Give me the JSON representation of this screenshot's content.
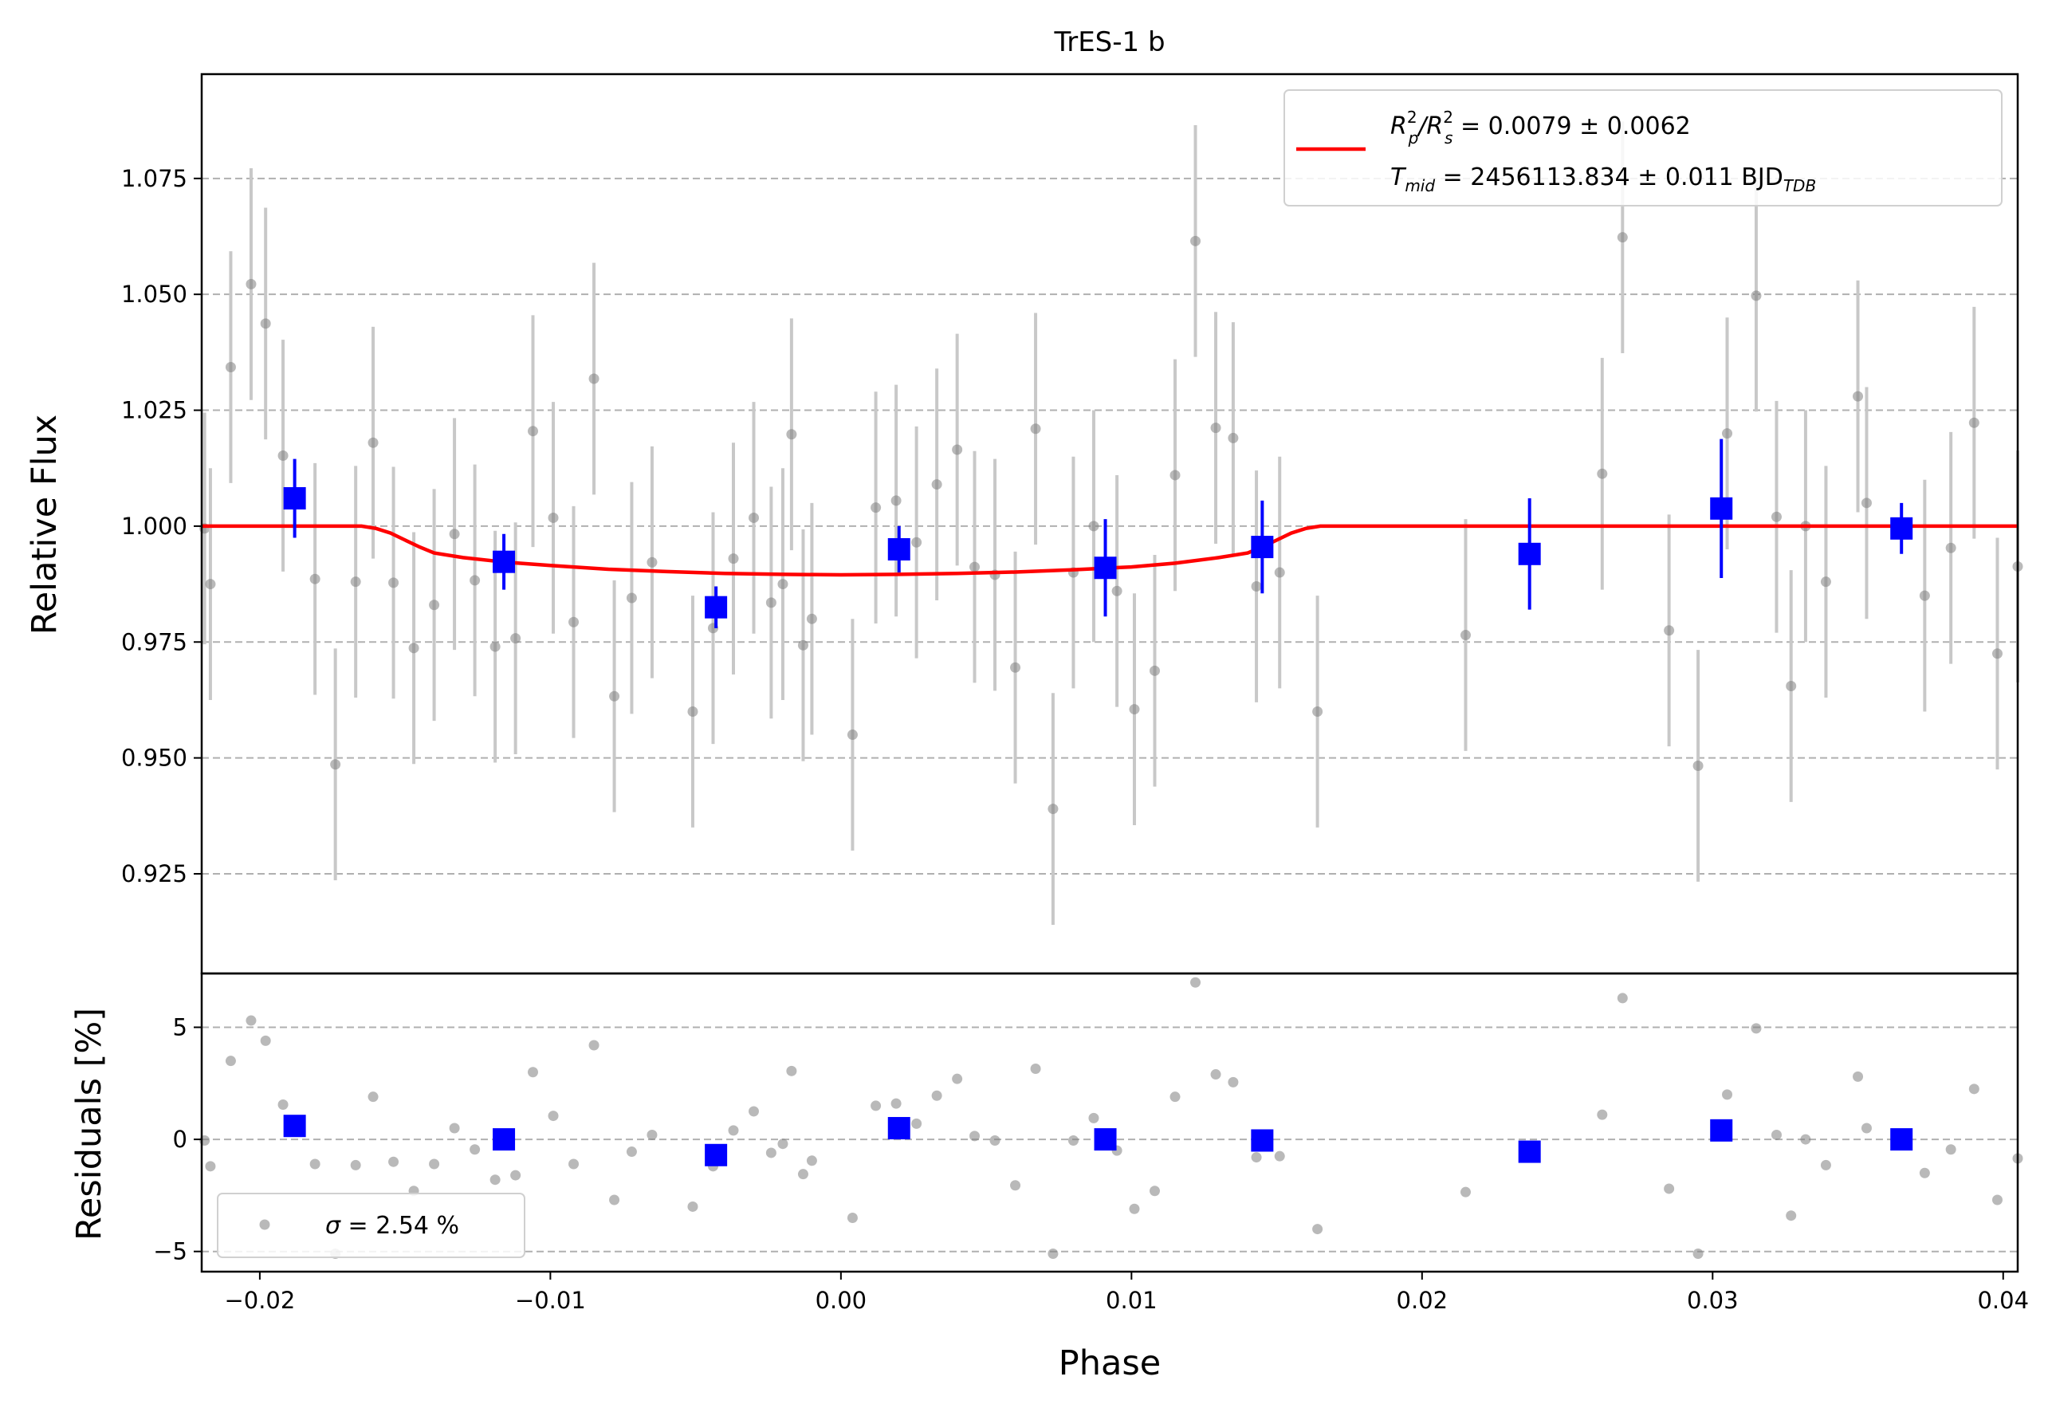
{
  "chart_data": {
    "type": "scatter",
    "title": "TrES-1 b",
    "xlabel": "Phase",
    "colors": {
      "raw": "#808080",
      "raw_err": "#c8c8c8",
      "binned": "#0000ff",
      "model": "#ff0000",
      "grid": "#b0b0b0"
    },
    "top_panel": {
      "ylabel": "Relative Flux",
      "xlim": [
        -0.022,
        0.0405
      ],
      "ylim": [
        0.9035,
        1.0975
      ],
      "yticks": [
        "0.925",
        "0.950",
        "0.975",
        "1.000",
        "1.025",
        "1.050",
        "1.075"
      ],
      "legend": {
        "line1_main": "R",
        "line1_sub1": "p",
        "line1_sup1": "2",
        "line1_sep": "/R",
        "line1_sub2": "s",
        "line1_sup2": "2",
        "line1_value": " = 0.0079 ± 0.0062",
        "line2_main": "T",
        "line2_sub": "mid",
        "line2_value": " = 2456113.834 ± 0.011 BJD",
        "line2_tdb": "TDB"
      },
      "raw_points": [
        [
          -0.0219,
          0.9995,
          0.025
        ],
        [
          -0.0217,
          0.9875,
          0.025
        ],
        [
          -0.021,
          1.0343,
          0.025
        ],
        [
          -0.0203,
          1.0522,
          0.025
        ],
        [
          -0.0198,
          1.0437,
          0.025
        ],
        [
          -0.0192,
          1.0152,
          0.025
        ],
        [
          -0.0181,
          0.9886,
          0.025
        ],
        [
          -0.0174,
          0.9486,
          0.025
        ],
        [
          -0.0167,
          0.988,
          0.025
        ],
        [
          -0.0161,
          1.018,
          0.025
        ],
        [
          -0.0154,
          0.9878,
          0.025
        ],
        [
          -0.0147,
          0.9737,
          0.025
        ],
        [
          -0.014,
          0.983,
          0.025
        ],
        [
          -0.0133,
          0.9983,
          0.025
        ],
        [
          -0.0126,
          0.9883,
          0.025
        ],
        [
          -0.0119,
          0.974,
          0.025
        ],
        [
          -0.0112,
          0.9758,
          0.025
        ],
        [
          -0.0106,
          1.0205,
          0.025
        ],
        [
          -0.0099,
          1.0018,
          0.025
        ],
        [
          -0.0092,
          0.9793,
          0.025
        ],
        [
          -0.0085,
          1.0318,
          0.025
        ],
        [
          -0.0078,
          0.9633,
          0.025
        ],
        [
          -0.0072,
          0.9845,
          0.025
        ],
        [
          -0.0065,
          0.9922,
          0.025
        ],
        [
          -0.0051,
          0.96,
          0.025
        ],
        [
          -0.0044,
          0.978,
          0.025
        ],
        [
          -0.0037,
          0.993,
          0.025
        ],
        [
          -0.003,
          1.0018,
          0.025
        ],
        [
          -0.0024,
          0.9835,
          0.025
        ],
        [
          -0.002,
          0.9875,
          0.025
        ],
        [
          -0.0017,
          1.0198,
          0.025
        ],
        [
          -0.0013,
          0.9743,
          0.025
        ],
        [
          -0.001,
          0.98,
          0.025
        ],
        [
          0.0004,
          0.955,
          0.025
        ],
        [
          0.0012,
          1.004,
          0.025
        ],
        [
          0.0019,
          1.0055,
          0.025
        ],
        [
          0.0026,
          0.9965,
          0.025
        ],
        [
          0.0033,
          1.009,
          0.025
        ],
        [
          0.004,
          1.0165,
          0.025
        ],
        [
          0.0046,
          0.9912,
          0.025
        ],
        [
          0.0053,
          0.9895,
          0.025
        ],
        [
          0.006,
          0.9695,
          0.025
        ],
        [
          0.0067,
          1.021,
          0.025
        ],
        [
          0.0073,
          0.939,
          0.025
        ],
        [
          0.008,
          0.99,
          0.025
        ],
        [
          0.0087,
          1.0,
          0.025
        ],
        [
          0.0095,
          0.986,
          0.025
        ],
        [
          0.0101,
          0.9605,
          0.025
        ],
        [
          0.0108,
          0.9688,
          0.025
        ],
        [
          0.0115,
          1.011,
          0.025
        ],
        [
          0.0122,
          1.0615,
          0.025
        ],
        [
          0.0129,
          1.0212,
          0.025
        ],
        [
          0.0135,
          1.019,
          0.025
        ],
        [
          0.0143,
          0.987,
          0.025
        ],
        [
          0.0151,
          0.99,
          0.025
        ],
        [
          0.0164,
          0.96,
          0.025
        ],
        [
          0.0215,
          0.9765,
          0.025
        ],
        [
          0.0262,
          1.0113,
          0.025
        ],
        [
          0.0269,
          1.0623,
          0.025
        ],
        [
          0.0285,
          0.9775,
          0.025
        ],
        [
          0.0295,
          0.9483,
          0.025
        ],
        [
          0.0305,
          1.02,
          0.025
        ],
        [
          0.0315,
          1.0497,
          0.025
        ],
        [
          0.0322,
          1.002,
          0.025
        ],
        [
          0.0327,
          0.9655,
          0.025
        ],
        [
          0.0332,
          1.0,
          0.025
        ],
        [
          0.0339,
          0.988,
          0.025
        ],
        [
          0.035,
          1.028,
          0.025
        ],
        [
          0.0353,
          1.005,
          0.025
        ],
        [
          0.0373,
          0.985,
          0.025
        ],
        [
          0.0382,
          0.9953,
          0.025
        ],
        [
          0.039,
          1.0223,
          0.025
        ],
        [
          0.0398,
          0.9725,
          0.025
        ],
        [
          0.0405,
          0.9913,
          0.025
        ]
      ],
      "binned_points": [
        [
          -0.0188,
          1.006,
          0.0085
        ],
        [
          -0.0116,
          0.9923,
          0.006
        ],
        [
          -0.0043,
          0.9825,
          0.0045
        ],
        [
          0.002,
          0.995,
          0.005
        ],
        [
          0.0091,
          0.991,
          0.0105
        ],
        [
          0.0145,
          0.9955,
          0.01
        ],
        [
          0.0237,
          0.994,
          0.012
        ],
        [
          0.0303,
          1.0038,
          0.015
        ],
        [
          0.0365,
          0.9995,
          0.0055
        ]
      ],
      "model_curve": [
        [
          -0.022,
          1.0
        ],
        [
          -0.0165,
          1.0
        ],
        [
          -0.016,
          0.9995
        ],
        [
          -0.0155,
          0.9985
        ],
        [
          -0.015,
          0.997
        ],
        [
          -0.0145,
          0.9955
        ],
        [
          -0.014,
          0.9942
        ],
        [
          -0.013,
          0.9932
        ],
        [
          -0.0115,
          0.9922
        ],
        [
          -0.01,
          0.9915
        ],
        [
          -0.008,
          0.9907
        ],
        [
          -0.006,
          0.9902
        ],
        [
          -0.004,
          0.9898
        ],
        [
          -0.002,
          0.9896
        ],
        [
          0.0,
          0.9895
        ],
        [
          0.002,
          0.9896
        ],
        [
          0.004,
          0.9898
        ],
        [
          0.006,
          0.9901
        ],
        [
          0.008,
          0.9906
        ],
        [
          0.01,
          0.9912
        ],
        [
          0.0115,
          0.992
        ],
        [
          0.013,
          0.9932
        ],
        [
          0.014,
          0.9942
        ],
        [
          0.0145,
          0.9955
        ],
        [
          0.015,
          0.997
        ],
        [
          0.0155,
          0.9985
        ],
        [
          0.016,
          0.9995
        ],
        [
          0.0165,
          1.0
        ],
        [
          0.0405,
          1.0
        ]
      ]
    },
    "bottom_panel": {
      "ylabel": "Residuals [%]",
      "ylim": [
        -5.9,
        7.4
      ],
      "yticks": [
        "−5",
        "0",
        "5"
      ],
      "ytick_values": [
        -5,
        0,
        5
      ],
      "xticks": [
        "−0.02",
        "−0.01",
        "0.00",
        "0.01",
        "0.02",
        "0.03",
        "0.04"
      ],
      "xtick_values": [
        -0.02,
        -0.01,
        0.0,
        0.01,
        0.02,
        0.03,
        0.04
      ],
      "legend": {
        "sigma_symbol": "σ",
        "sigma_text": " = 2.54 %"
      },
      "raw_points": [
        [
          -0.0219,
          -0.05
        ],
        [
          -0.0217,
          -1.2
        ],
        [
          -0.021,
          3.5
        ],
        [
          -0.0203,
          5.3
        ],
        [
          -0.0198,
          4.4
        ],
        [
          -0.0192,
          1.55
        ],
        [
          -0.0181,
          -1.1
        ],
        [
          -0.0174,
          -5.1
        ],
        [
          -0.0167,
          -1.15
        ],
        [
          -0.0161,
          1.9
        ],
        [
          -0.0154,
          -1.0
        ],
        [
          -0.0147,
          -2.3
        ],
        [
          -0.014,
          -1.1
        ],
        [
          -0.0133,
          0.5
        ],
        [
          -0.0126,
          -0.45
        ],
        [
          -0.0119,
          -1.8
        ],
        [
          -0.0112,
          -1.6
        ],
        [
          -0.0106,
          3.0
        ],
        [
          -0.0099,
          1.05
        ],
        [
          -0.0092,
          -1.1
        ],
        [
          -0.0085,
          4.2
        ],
        [
          -0.0078,
          -2.7
        ],
        [
          -0.0072,
          -0.55
        ],
        [
          -0.0065,
          0.2
        ],
        [
          -0.0051,
          -3.0
        ],
        [
          -0.0044,
          -1.2
        ],
        [
          -0.0037,
          0.4
        ],
        [
          -0.003,
          1.25
        ],
        [
          -0.0024,
          -0.6
        ],
        [
          -0.002,
          -0.2
        ],
        [
          -0.0017,
          3.05
        ],
        [
          -0.0013,
          -1.55
        ],
        [
          -0.001,
          -0.95
        ],
        [
          0.0004,
          -3.5
        ],
        [
          0.0012,
          1.5
        ],
        [
          0.0019,
          1.6
        ],
        [
          0.0026,
          0.7
        ],
        [
          0.0033,
          1.95
        ],
        [
          0.004,
          2.7
        ],
        [
          0.0046,
          0.15
        ],
        [
          0.0053,
          -0.05
        ],
        [
          0.006,
          -2.05
        ],
        [
          0.0067,
          3.15
        ],
        [
          0.0073,
          -5.1
        ],
        [
          0.008,
          -0.05
        ],
        [
          0.0087,
          0.95
        ],
        [
          0.0095,
          -0.5
        ],
        [
          0.0101,
          -3.1
        ],
        [
          0.0108,
          -2.3
        ],
        [
          0.0115,
          1.9
        ],
        [
          0.0122,
          7.0
        ],
        [
          0.0129,
          2.9
        ],
        [
          0.0135,
          2.55
        ],
        [
          0.0143,
          -0.8
        ],
        [
          0.0151,
          -0.75
        ],
        [
          0.0164,
          -4.0
        ],
        [
          0.0215,
          -2.35
        ],
        [
          0.0262,
          1.1
        ],
        [
          0.0269,
          6.3
        ],
        [
          0.0285,
          -2.2
        ],
        [
          0.0295,
          -5.1
        ],
        [
          0.0305,
          2.0
        ],
        [
          0.0315,
          4.95
        ],
        [
          0.0322,
          0.2
        ],
        [
          0.0327,
          -3.4
        ],
        [
          0.0332,
          0.0
        ],
        [
          0.0339,
          -1.15
        ],
        [
          0.035,
          2.8
        ],
        [
          0.0353,
          0.5
        ],
        [
          0.0373,
          -1.5
        ],
        [
          0.0382,
          -0.45
        ],
        [
          0.039,
          2.25
        ],
        [
          0.0398,
          -2.7
        ],
        [
          0.0405,
          -0.85
        ]
      ],
      "binned_points": [
        [
          -0.0188,
          0.6
        ],
        [
          -0.0116,
          0.0
        ],
        [
          -0.0043,
          -0.7
        ],
        [
          0.002,
          0.5
        ],
        [
          0.0091,
          0.0
        ],
        [
          0.0145,
          -0.05
        ],
        [
          0.0237,
          -0.55
        ],
        [
          0.0303,
          0.4
        ],
        [
          0.0365,
          0.0
        ]
      ]
    }
  }
}
